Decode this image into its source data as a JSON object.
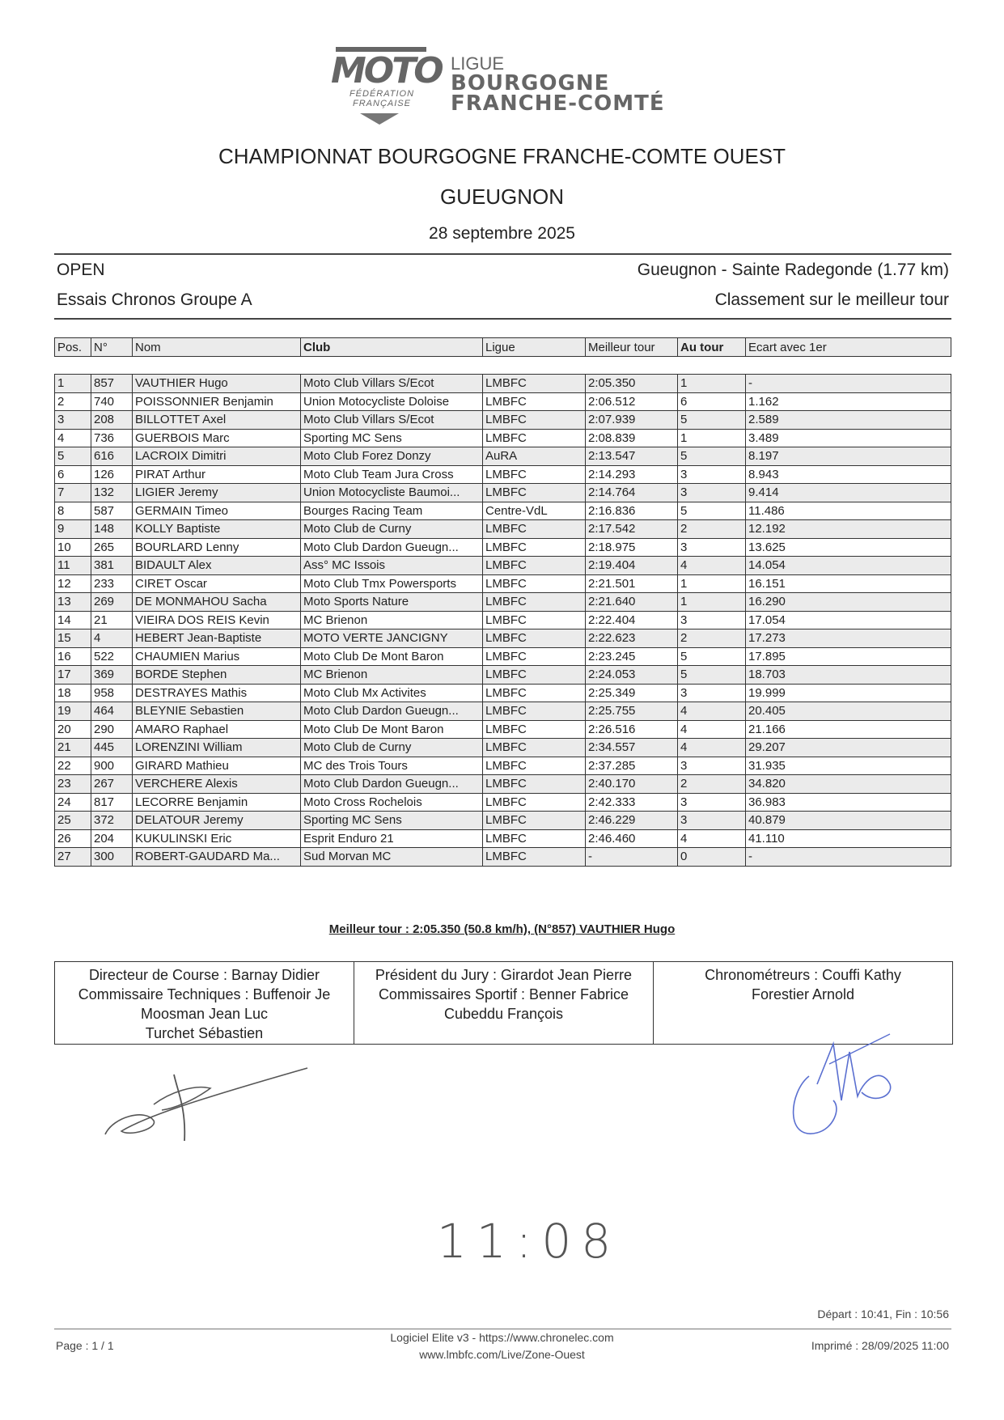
{
  "logo": {
    "brand": "MOTO",
    "federation": [
      "FÉDÉRATION",
      "FRANÇAISE"
    ],
    "ligue_lines": [
      "LIGUE",
      "BOURGOGNE",
      "FRANCHE-COMTÉ"
    ]
  },
  "header": {
    "championship": "CHAMPIONNAT BOURGOGNE FRANCHE-COMTE OUEST",
    "venue": "GUEUGNON",
    "date": "28 septembre 2025",
    "category": "OPEN",
    "session": "Essais Chronos Groupe A",
    "track": "Gueugnon - Sainte Radegonde (1.77 km)",
    "ranking_mode": "Classement sur le meilleur tour"
  },
  "table": {
    "columns": [
      "Pos.",
      "N°",
      "Nom",
      "Club",
      "Ligue",
      "Meilleur tour",
      "Au tour",
      "Ecart avec 1er"
    ],
    "rows": [
      [
        "1",
        "857",
        "VAUTHIER Hugo",
        "Moto Club Villars S/Ecot",
        "LMBFC",
        "2:05.350",
        "1",
        "-"
      ],
      [
        "2",
        "740",
        "POISSONNIER Benjamin",
        "Union Motocycliste Doloise",
        "LMBFC",
        "2:06.512",
        "6",
        "1.162"
      ],
      [
        "3",
        "208",
        "BILLOTTET Axel",
        "Moto Club Villars S/Ecot",
        "LMBFC",
        "2:07.939",
        "5",
        "2.589"
      ],
      [
        "4",
        "736",
        "GUERBOIS Marc",
        "Sporting MC Sens",
        "LMBFC",
        "2:08.839",
        "1",
        "3.489"
      ],
      [
        "5",
        "616",
        "LACROIX Dimitri",
        "Moto Club Forez Donzy",
        "AuRA",
        "2:13.547",
        "5",
        "8.197"
      ],
      [
        "6",
        "126",
        "PIRAT Arthur",
        "Moto Club Team Jura Cross",
        "LMBFC",
        "2:14.293",
        "3",
        "8.943"
      ],
      [
        "7",
        "132",
        "LIGIER Jeremy",
        "Union Motocycliste Baumoi...",
        "LMBFC",
        "2:14.764",
        "3",
        "9.414"
      ],
      [
        "8",
        "587",
        "GERMAIN Timeo",
        "Bourges Racing Team",
        "Centre-VdL",
        "2:16.836",
        "5",
        "11.486"
      ],
      [
        "9",
        "148",
        "KOLLY Baptiste",
        "Moto Club de Curny",
        "LMBFC",
        "2:17.542",
        "2",
        "12.192"
      ],
      [
        "10",
        "265",
        "BOURLARD Lenny",
        "Moto Club Dardon Gueugn...",
        "LMBFC",
        "2:18.975",
        "3",
        "13.625"
      ],
      [
        "11",
        "381",
        "BIDAULT Alex",
        "Ass° MC Issois",
        "LMBFC",
        "2:19.404",
        "4",
        "14.054"
      ],
      [
        "12",
        "233",
        "CIRET Oscar",
        "Moto Club Tmx Powersports",
        "LMBFC",
        "2:21.501",
        "1",
        "16.151"
      ],
      [
        "13",
        "269",
        "DE MONMAHOU Sacha",
        "Moto Sports Nature",
        "LMBFC",
        "2:21.640",
        "1",
        "16.290"
      ],
      [
        "14",
        "21",
        "VIEIRA DOS REIS Kevin",
        "MC Brienon",
        "LMBFC",
        "2:22.404",
        "3",
        "17.054"
      ],
      [
        "15",
        "4",
        "HEBERT Jean-Baptiste",
        "MOTO VERTE JANCIGNY",
        "LMBFC",
        "2:22.623",
        "2",
        "17.273"
      ],
      [
        "16",
        "522",
        "CHAUMIEN Marius",
        "Moto Club De Mont Baron",
        "LMBFC",
        "2:23.245",
        "5",
        "17.895"
      ],
      [
        "17",
        "369",
        "BORDE Stephen",
        "MC Brienon",
        "LMBFC",
        "2:24.053",
        "5",
        "18.703"
      ],
      [
        "18",
        "958",
        "DESTRAYES Mathis",
        "Moto Club Mx Activites",
        "LMBFC",
        "2:25.349",
        "3",
        "19.999"
      ],
      [
        "19",
        "464",
        "BLEYNIE Sebastien",
        "Moto Club Dardon Gueugn...",
        "LMBFC",
        "2:25.755",
        "4",
        "20.405"
      ],
      [
        "20",
        "290",
        "AMARO Raphael",
        "Moto Club De Mont Baron",
        "LMBFC",
        "2:26.516",
        "4",
        "21.166"
      ],
      [
        "21",
        "445",
        "LORENZINI William",
        "Moto Club de Curny",
        "LMBFC",
        "2:34.557",
        "4",
        "29.207"
      ],
      [
        "22",
        "900",
        "GIRARD Mathieu",
        "MC des Trois Tours",
        "LMBFC",
        "2:37.285",
        "3",
        "31.935"
      ],
      [
        "23",
        "267",
        "VERCHERE Alexis",
        "Moto Club Dardon Gueugn...",
        "LMBFC",
        "2:40.170",
        "2",
        "34.820"
      ],
      [
        "24",
        "817",
        "LECORRE Benjamin",
        "Moto Cross Rochelois",
        "LMBFC",
        "2:42.333",
        "3",
        "36.983"
      ],
      [
        "25",
        "372",
        "DELATOUR Jeremy",
        "Sporting MC Sens",
        "LMBFC",
        "2:46.229",
        "3",
        "40.879"
      ],
      [
        "26",
        "204",
        "KUKULINSKI Eric",
        "Esprit Enduro 21",
        "LMBFC",
        "2:46.460",
        "4",
        "41.110"
      ],
      [
        "27",
        "300",
        "ROBERT-GAUDARD Ma...",
        "Sud Morvan MC",
        "LMBFC",
        "-",
        "0",
        "-"
      ]
    ]
  },
  "best_lap": "Meilleur tour : 2:05.350 (50.8 km/h), (N°857) VAUTHIER Hugo",
  "officials": [
    [
      "Directeur de Course : Barnay Didier",
      "Commissaire Techniques : Buffenoir Je",
      "Moosman Jean Luc",
      "Turchet Sébastien"
    ],
    [
      "Président du Jury : Girardot Jean Pierre",
      "Commissaires Sportif : Benner Fabrice",
      "Cubeddu François"
    ],
    [
      "Chronométreurs : Couffi Kathy",
      "Forestier Arnold"
    ]
  ],
  "handwritten_time": "11:08",
  "signature_colors": {
    "left": "#555555",
    "right": "#5a6fd0"
  },
  "footer": {
    "times": "Départ : 10:41, Fin : 10:56",
    "page": "Page : 1 / 1",
    "software": "Logiciel Elite v3 - https://www.chronelec.com",
    "website": "www.lmbfc.com/Live/Zone-Ouest",
    "printed": "Imprimé : 28/09/2025 11:00"
  }
}
